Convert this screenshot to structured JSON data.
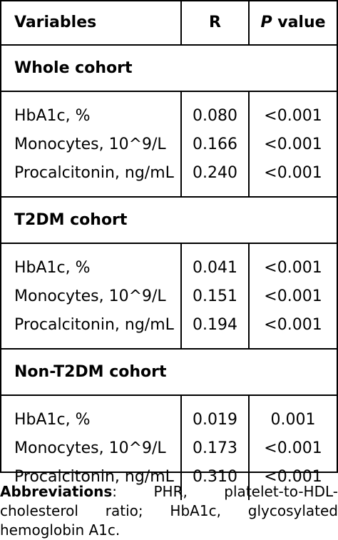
{
  "table": {
    "headers": {
      "variables": "Variables",
      "r": "R",
      "p_italic": "P",
      "p_rest": " value"
    },
    "sections": [
      {
        "title": "Whole cohort",
        "rows": [
          {
            "variable": "HbA1c, %",
            "r": "0.080",
            "p": "<0.001"
          },
          {
            "variable": "Monocytes, 10^9/L",
            "r": "0.166",
            "p": "<0.001"
          },
          {
            "variable": "Procalcitonin, ng/mL",
            "r": "0.240",
            "p": "<0.001"
          }
        ]
      },
      {
        "title": "T2DM cohort",
        "rows": [
          {
            "variable": "HbA1c, %",
            "r": "0.041",
            "p": "<0.001"
          },
          {
            "variable": "Monocytes, 10^9/L",
            "r": "0.151",
            "p": "<0.001"
          },
          {
            "variable": "Procalcitonin, ng/mL",
            "r": "0.194",
            "p": "<0.001"
          }
        ]
      },
      {
        "title": "Non-T2DM cohort",
        "rows": [
          {
            "variable": "HbA1c, %",
            "r": "0.019",
            "p": "0.001"
          },
          {
            "variable": "Monocytes, 10^9/L",
            "r": "0.173",
            "p": "<0.001"
          },
          {
            "variable": "Procalcitonin, ng/mL",
            "r": "0.310",
            "p": "<0.001"
          }
        ]
      }
    ]
  },
  "footnote": {
    "label": "Abbreviations",
    "text": ": PHR, platelet-to-HDL-cholesterol ratio; HbA1c, glycosylated hemoglobin A1c."
  }
}
